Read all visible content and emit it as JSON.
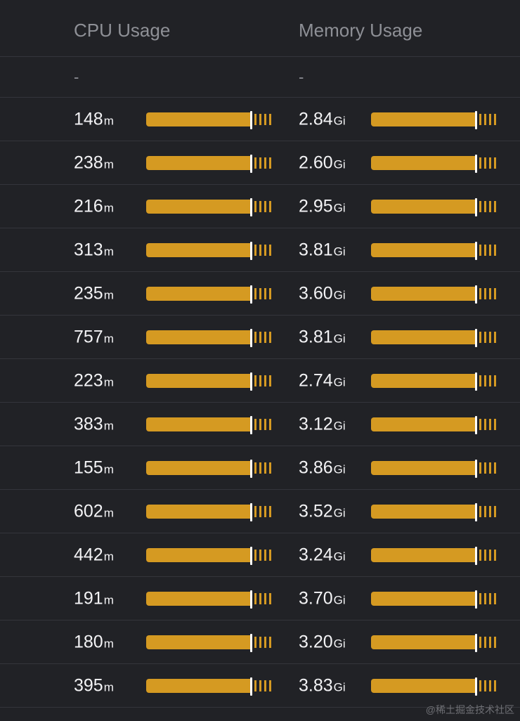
{
  "header": {
    "cpu_label": "CPU Usage",
    "memory_label": "Memory Usage"
  },
  "placeholder_row": {
    "cpu": "-",
    "memory": "-"
  },
  "rows": [
    {
      "cpu_value": "148",
      "cpu_unit": "m",
      "mem_value": "2.84",
      "mem_unit": "Gi"
    },
    {
      "cpu_value": "238",
      "cpu_unit": "m",
      "mem_value": "2.60",
      "mem_unit": "Gi"
    },
    {
      "cpu_value": "216",
      "cpu_unit": "m",
      "mem_value": "2.95",
      "mem_unit": "Gi"
    },
    {
      "cpu_value": "313",
      "cpu_unit": "m",
      "mem_value": "3.81",
      "mem_unit": "Gi"
    },
    {
      "cpu_value": "235",
      "cpu_unit": "m",
      "mem_value": "3.60",
      "mem_unit": "Gi"
    },
    {
      "cpu_value": "757",
      "cpu_unit": "m",
      "mem_value": "3.81",
      "mem_unit": "Gi"
    },
    {
      "cpu_value": "223",
      "cpu_unit": "m",
      "mem_value": "2.74",
      "mem_unit": "Gi"
    },
    {
      "cpu_value": "383",
      "cpu_unit": "m",
      "mem_value": "3.12",
      "mem_unit": "Gi"
    },
    {
      "cpu_value": "155",
      "cpu_unit": "m",
      "mem_value": "3.86",
      "mem_unit": "Gi"
    },
    {
      "cpu_value": "602",
      "cpu_unit": "m",
      "mem_value": "3.52",
      "mem_unit": "Gi"
    },
    {
      "cpu_value": "442",
      "cpu_unit": "m",
      "mem_value": "3.24",
      "mem_unit": "Gi"
    },
    {
      "cpu_value": "191",
      "cpu_unit": "m",
      "mem_value": "3.70",
      "mem_unit": "Gi"
    },
    {
      "cpu_value": "180",
      "cpu_unit": "m",
      "mem_value": "3.20",
      "mem_unit": "Gi"
    },
    {
      "cpu_value": "395",
      "cpu_unit": "m",
      "mem_value": "3.83",
      "mem_unit": "Gi"
    }
  ],
  "usage_bar": {
    "request_fraction": 0.82,
    "color": "#d59a22",
    "marker_color": "#ffffff"
  },
  "watermark": "@稀土掘金技术社区"
}
